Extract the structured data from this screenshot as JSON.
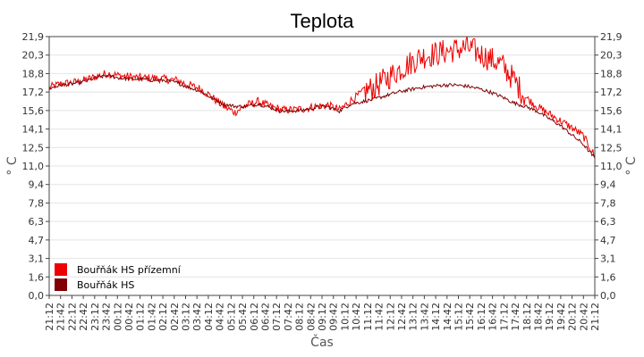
{
  "chart_data": {
    "type": "line",
    "title": "Teplota",
    "xlabel": "Čas",
    "ylabel": "° C",
    "ylim": [
      0,
      21.9
    ],
    "xlim": [
      0,
      47
    ],
    "y_ticks": [
      "0,0",
      "1,6",
      "3,1",
      "4,7",
      "6,3",
      "7,8",
      "9,4",
      "11,0",
      "12,5",
      "14,1",
      "15,6",
      "17,2",
      "18,8",
      "20,3",
      "21,9"
    ],
    "x_ticks": [
      "21:12",
      "21:42",
      "22:12",
      "22:42",
      "23:12",
      "23:42",
      "00:12",
      "00:42",
      "01:12",
      "01:42",
      "02:12",
      "02:42",
      "03:12",
      "03:42",
      "04:12",
      "04:42",
      "05:12",
      "05:42",
      "06:12",
      "06:42",
      "07:12",
      "07:42",
      "08:12",
      "08:42",
      "09:12",
      "09:42",
      "10:12",
      "10:42",
      "11:12",
      "11:42",
      "12:12",
      "12:42",
      "13:12",
      "13:42",
      "14:12",
      "14:42",
      "15:12",
      "15:42",
      "16:12",
      "16:42",
      "17:12",
      "17:42",
      "18:12",
      "18:42",
      "19:12",
      "19:42",
      "20:12",
      "20:42",
      "21:12"
    ],
    "grid": true,
    "legend_position": "bottom-left",
    "series": [
      {
        "name": "Bouřňák HS přízemní",
        "color": "#ee0000",
        "x": [
          0,
          1,
          2,
          3,
          4,
          5,
          6,
          7,
          8,
          9,
          10,
          11,
          12,
          13,
          14,
          15,
          16,
          17,
          18,
          19,
          20,
          21,
          22,
          23,
          24,
          25,
          26,
          27,
          28,
          29,
          30,
          31,
          32,
          33,
          34,
          35,
          36,
          37,
          38,
          39,
          40,
          41,
          42,
          43,
          44,
          45,
          46,
          47
        ],
        "values": [
          17.6,
          17.9,
          18.0,
          18.2,
          18.5,
          18.8,
          18.6,
          18.5,
          18.4,
          18.4,
          18.3,
          18.2,
          17.8,
          17.5,
          16.8,
          16.0,
          15.5,
          16.1,
          16.4,
          16.0,
          15.7,
          15.7,
          15.8,
          16.0,
          16.1,
          15.7,
          16.5,
          17.2,
          17.6,
          18.3,
          19.0,
          19.6,
          20.2,
          20.4,
          20.6,
          20.8,
          21.0,
          20.5,
          20.0,
          19.5,
          18.3,
          16.8,
          16.0,
          15.4,
          14.8,
          14.2,
          13.5,
          11.8
        ]
      },
      {
        "name": "Bouřňák HS",
        "color": "#800000",
        "x": [
          0,
          1,
          2,
          3,
          4,
          5,
          6,
          7,
          8,
          9,
          10,
          11,
          12,
          13,
          14,
          15,
          16,
          17,
          18,
          19,
          20,
          21,
          22,
          23,
          24,
          25,
          26,
          27,
          28,
          29,
          30,
          31,
          32,
          33,
          34,
          35,
          36,
          37,
          38,
          39,
          40,
          41,
          42,
          43,
          44,
          45,
          46,
          47
        ],
        "values": [
          17.5,
          17.8,
          17.9,
          18.1,
          18.4,
          18.6,
          18.4,
          18.3,
          18.3,
          18.2,
          18.2,
          18.0,
          17.6,
          17.3,
          16.7,
          16.2,
          16.0,
          16.0,
          16.2,
          15.9,
          15.6,
          15.6,
          15.7,
          15.9,
          16.0,
          15.6,
          16.2,
          16.4,
          16.6,
          16.9,
          17.2,
          17.4,
          17.6,
          17.7,
          17.8,
          17.8,
          17.7,
          17.5,
          17.2,
          16.8,
          16.3,
          16.0,
          15.6,
          15.0,
          14.4,
          13.6,
          12.8,
          11.6
        ]
      }
    ]
  }
}
